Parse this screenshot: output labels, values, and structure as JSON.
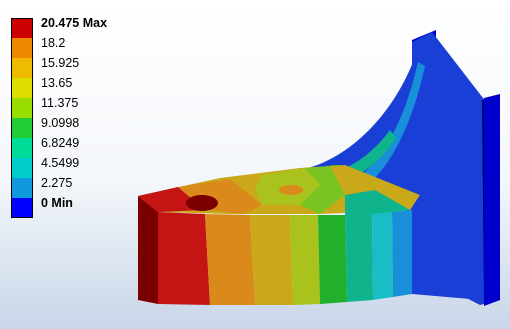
{
  "legend": {
    "labels": [
      "20.475 Max",
      "18.2",
      "15.925",
      "13.65",
      "11.375",
      "9.0998",
      "6.8249",
      "4.5499",
      "2.275",
      "0 Min"
    ],
    "colors": [
      "#cc0000",
      "#ee8800",
      "#eebb00",
      "#dddd00",
      "#99dd00",
      "#22cc33",
      "#00dd99",
      "#00cccc",
      "#1199dd",
      "#0000ff"
    ]
  },
  "model": {
    "colors": {
      "dark_red": "#7a0000",
      "red": "#c41414",
      "orange": "#d98a1b",
      "gold": "#c9a81a",
      "yellow_green": "#aac21c",
      "lime": "#79c422",
      "green": "#22b02c",
      "teal": "#10b48c",
      "cyan": "#18bdc6",
      "sky": "#1a8fd9",
      "blue": "#1a3fd6",
      "deep_blue": "#0000cc",
      "navy": "#000070"
    }
  }
}
